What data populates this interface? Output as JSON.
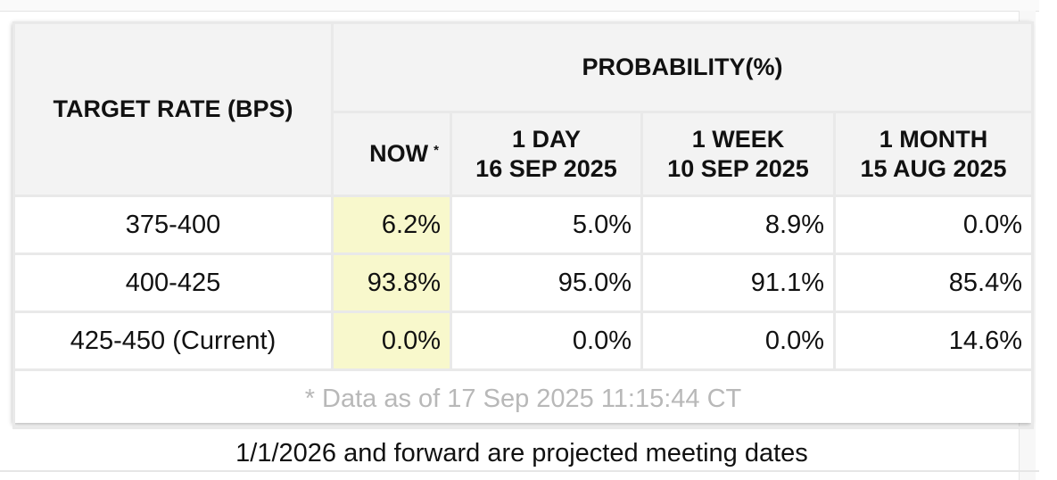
{
  "table": {
    "target_header": "TARGET RATE (BPS)",
    "probability_header": "PROBABILITY(%)",
    "columns": [
      {
        "line1": "NOW",
        "marker": "*"
      },
      {
        "line1": "1 DAY",
        "line2": "16 SEP 2025"
      },
      {
        "line1": "1 WEEK",
        "line2": "10 SEP 2025"
      },
      {
        "line1": "1 MONTH",
        "line2": "15 AUG 2025"
      }
    ],
    "rows": [
      {
        "rate": "375-400",
        "now": "6.2%",
        "day": "5.0%",
        "week": "8.9%",
        "month": "0.0%"
      },
      {
        "rate": "400-425",
        "now": "93.8%",
        "day": "95.0%",
        "week": "91.1%",
        "month": "85.4%"
      },
      {
        "rate": "425-450 (Current)",
        "now": "0.0%",
        "day": "0.0%",
        "week": "0.0%",
        "month": "14.6%"
      }
    ],
    "note": "* Data as of 17 Sep 2025 11:15:44 CT"
  },
  "footer": "1/1/2026 and forward are projected meeting dates",
  "colors": {
    "header_bg": "#f3f3f3",
    "now_highlight": "#f8f8cc",
    "border": "#e9e9e9",
    "note_text": "#b8b8b8"
  }
}
